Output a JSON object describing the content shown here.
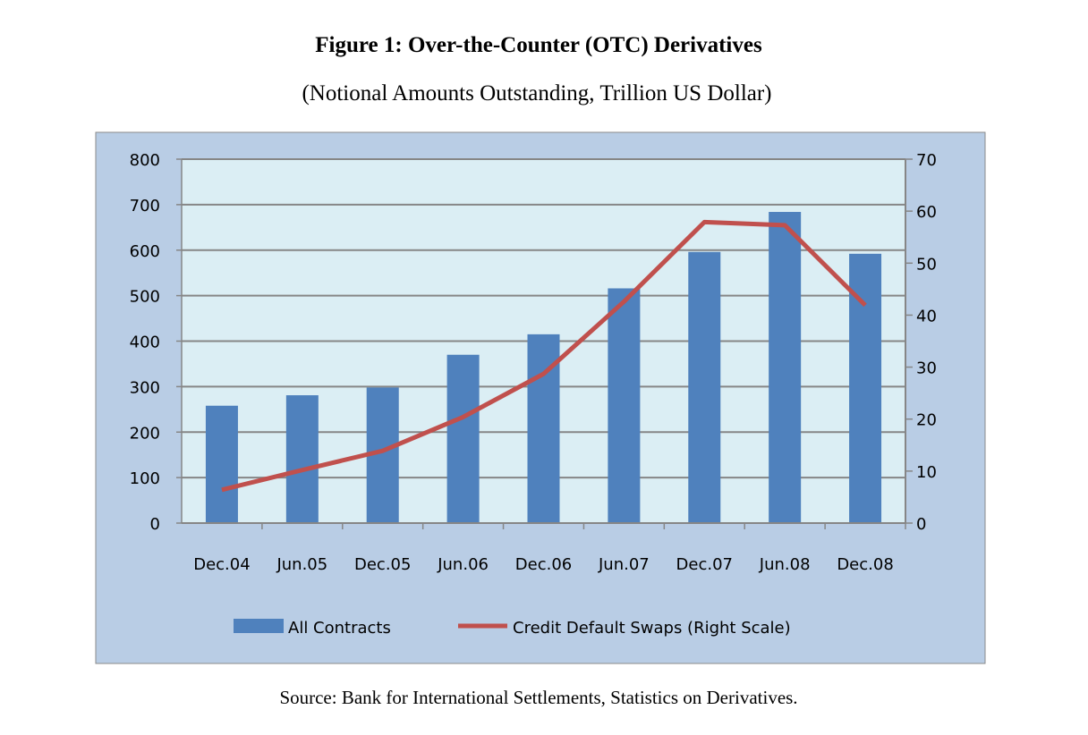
{
  "chart_data": {
    "type": "bar+line",
    "title": "Figure 1: Over-the-Counter (OTC) Derivatives",
    "subtitle": "(Notional Amounts Outstanding, Trillion US Dollar)",
    "source": "Source: Bank for International Settlements, Statistics on Derivatives.",
    "categories": [
      "Dec.04",
      "Jun.05",
      "Dec.05",
      "Jun.06",
      "Dec.06",
      "Jun.07",
      "Dec.07",
      "Jun.08",
      "Dec.08"
    ],
    "series": [
      {
        "name": "All Contracts",
        "type": "bar",
        "axis": "left",
        "color": "#4f81bd",
        "values": [
          258,
          281,
          298,
          370,
          415,
          516,
          596,
          684,
          592
        ]
      },
      {
        "name": "Credit Default Swaps (Right Scale)",
        "type": "line",
        "axis": "right",
        "color": "#c0504d",
        "values": [
          6.4,
          10.2,
          13.9,
          20.4,
          28.7,
          42.6,
          57.9,
          57.3,
          41.9
        ]
      }
    ],
    "y_left": {
      "range": [
        0,
        800
      ],
      "ticks": [
        "0",
        "100",
        "200",
        "300",
        "400",
        "500",
        "600",
        "700",
        "800"
      ]
    },
    "y_right": {
      "range": [
        0,
        70
      ],
      "ticks": [
        "0",
        "10",
        "20",
        "30",
        "40",
        "50",
        "60",
        "70"
      ]
    },
    "grid": true,
    "legend_position": "bottom",
    "colors": {
      "plot_background": "#dbeef4",
      "chart_background": "#b9cde5",
      "grid": "#868686"
    }
  }
}
